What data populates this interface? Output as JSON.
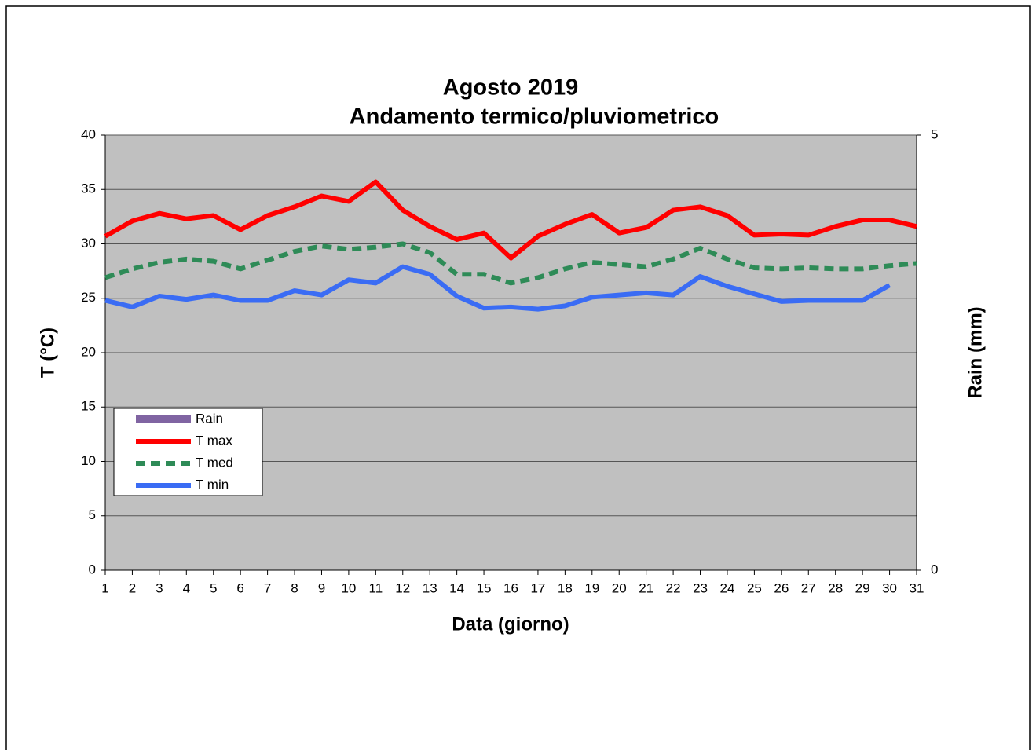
{
  "chart_data": {
    "type": "line",
    "title": [
      "Agosto 2019",
      "Andamento termico/pluviometrico"
    ],
    "xlabel": "Data (giorno)",
    "ylabel": "T (°C)",
    "y2label": "Rain (mm)",
    "categories": [
      1,
      2,
      3,
      4,
      5,
      6,
      7,
      8,
      9,
      10,
      11,
      12,
      13,
      14,
      15,
      16,
      17,
      18,
      19,
      20,
      21,
      22,
      23,
      24,
      25,
      26,
      27,
      28,
      29,
      30,
      31
    ],
    "ylim": [
      0,
      40
    ],
    "yticks": [
      0,
      5,
      10,
      15,
      20,
      25,
      30,
      35,
      40
    ],
    "y2lim": [
      0,
      5
    ],
    "y2ticks": [
      0,
      5
    ],
    "grid": true,
    "legend": "lower left",
    "series": [
      {
        "name": "Rain",
        "color": "#8064a2",
        "type": "bar",
        "axis": "y2",
        "values": [
          0,
          0,
          0,
          0,
          0,
          0,
          0,
          0,
          0,
          0,
          0,
          0,
          0,
          0,
          0,
          0,
          0,
          0,
          0,
          0,
          0,
          0,
          0,
          0,
          0,
          0,
          0,
          0,
          0,
          0,
          0
        ]
      },
      {
        "name": "T max",
        "color": "#ff0000",
        "style": "solid",
        "values": [
          30.7,
          32.1,
          32.8,
          32.3,
          32.6,
          31.3,
          32.6,
          33.4,
          34.4,
          33.9,
          35.7,
          33.1,
          31.6,
          30.4,
          31.0,
          28.7,
          30.7,
          31.8,
          32.7,
          31.0,
          31.5,
          33.1,
          33.4,
          32.6,
          30.8,
          30.9,
          30.8,
          31.6,
          32.2,
          32.2,
          31.6
        ]
      },
      {
        "name": "T med",
        "color": "#2e8b57",
        "style": "dashed",
        "values": [
          26.9,
          27.7,
          28.3,
          28.6,
          28.4,
          27.7,
          28.5,
          29.3,
          29.8,
          29.5,
          29.7,
          30.0,
          29.2,
          27.2,
          27.2,
          26.4,
          26.9,
          27.7,
          28.3,
          28.1,
          27.9,
          28.6,
          29.6,
          28.6,
          27.8,
          27.7,
          27.8,
          27.7,
          27.7,
          28.0,
          28.2
        ]
      },
      {
        "name": "T min",
        "color": "#3a6cf4",
        "style": "solid",
        "values": [
          24.8,
          24.2,
          25.2,
          24.9,
          25.3,
          24.8,
          24.8,
          25.7,
          25.3,
          26.7,
          26.4,
          27.9,
          27.2,
          25.2,
          24.1,
          24.2,
          24.0,
          24.3,
          25.1,
          25.3,
          25.5,
          25.3,
          27.0,
          26.1,
          25.4,
          24.7,
          24.8,
          24.8,
          24.8,
          26.2,
          null
        ]
      }
    ]
  }
}
